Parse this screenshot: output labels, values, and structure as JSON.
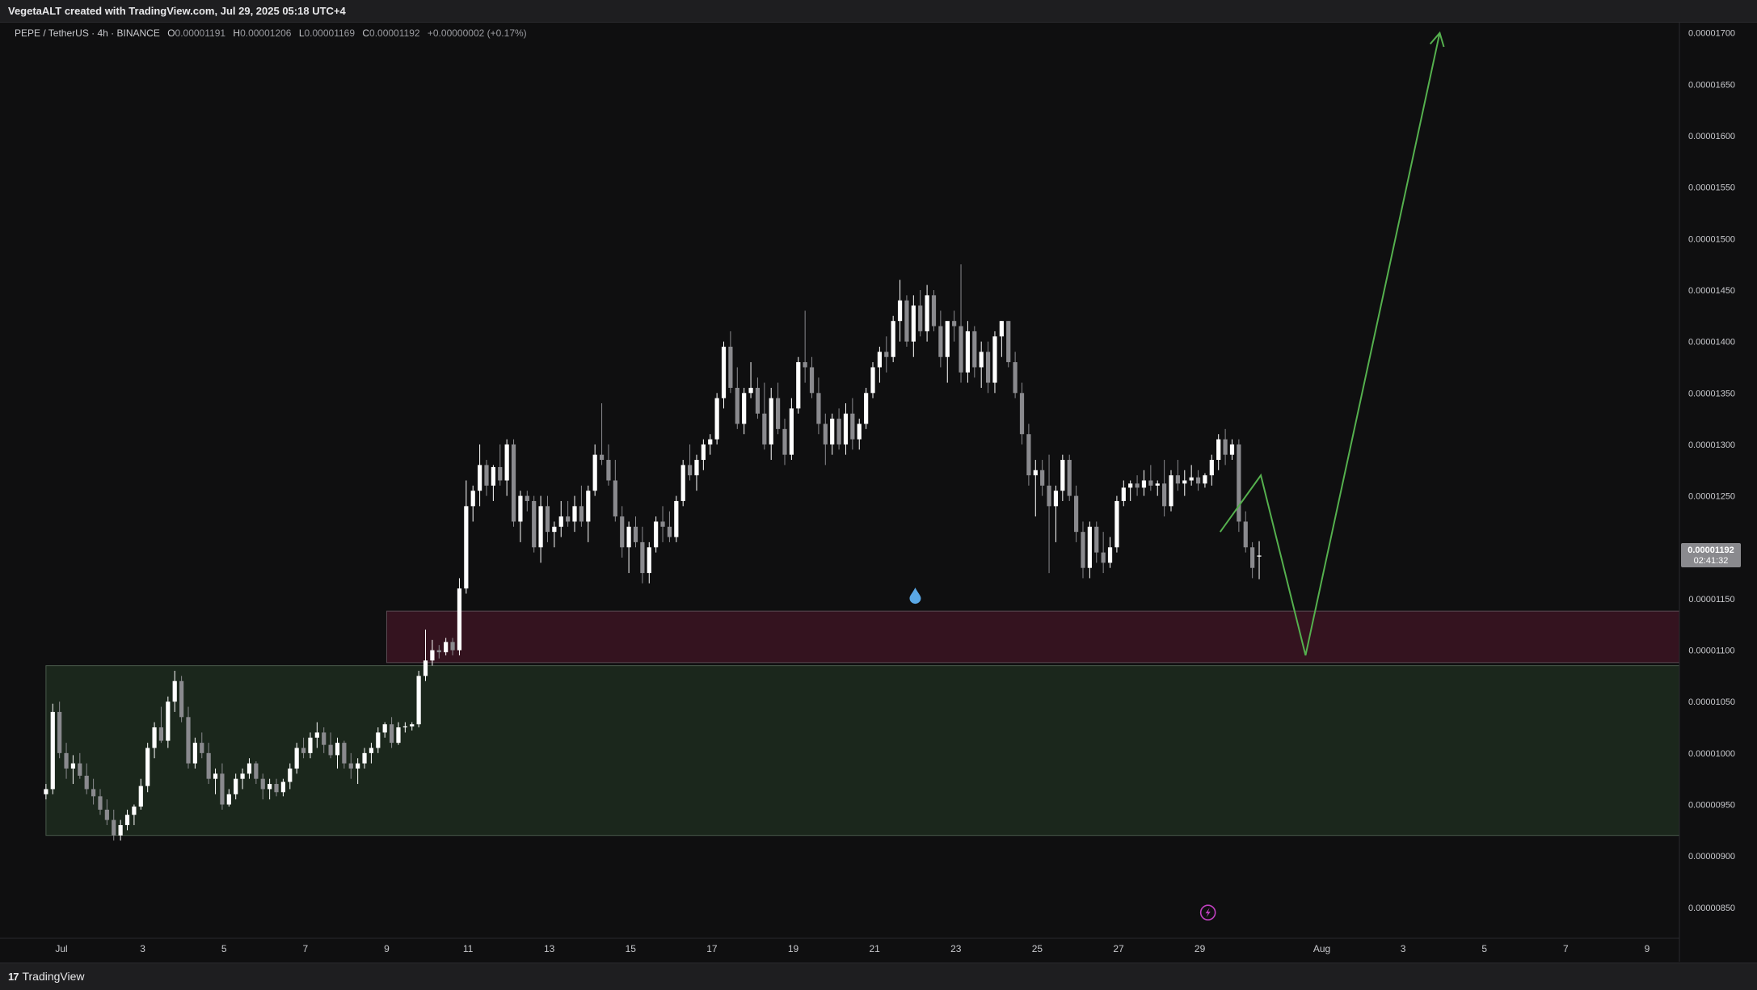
{
  "header": {
    "attribution": "VegetaALT created with TradingView.com, Jul 29, 2025 05:18 UTC+4"
  },
  "legend": {
    "symbol": "PEPE / TetherUS · 4h · BINANCE",
    "o_label": "O",
    "o_value": "0.00001191",
    "h_label": "H",
    "h_value": "0.00001206",
    "l_label": "L",
    "l_value": "0.00001169",
    "c_label": "C",
    "c_value": "0.00001192",
    "change": "+0.00000002 (+0.17%)"
  },
  "price_tag": {
    "price": "0.00001192",
    "countdown": "02:41:32"
  },
  "footer": {
    "brand": "TradingView"
  },
  "colors": {
    "background": "#0f0f10",
    "bull_candle": "#ffffff",
    "bear_candle": "#8a8a8e",
    "demand_zone": "#1b271c",
    "resistance_zone": "#34131f",
    "projection_line": "#55b04e",
    "marker_drop": "#5aa8e6",
    "marker_flash": "#c040c0"
  },
  "chart_data": {
    "type": "candlestick",
    "title": "",
    "ylim": [
      8.2e-06,
      1.71e-05
    ],
    "y_ticks": [
      "0.00000850",
      "0.00000900",
      "0.00000950",
      "0.00001000",
      "0.00001050",
      "0.00001100",
      "0.00001150",
      "0.00001200",
      "0.00001250",
      "0.00001300",
      "0.00001350",
      "0.00001400",
      "0.00001450",
      "0.00001500",
      "0.00001550",
      "0.00001600",
      "0.00001650",
      "0.00001700"
    ],
    "x_ticks": [
      "Jul",
      "3",
      "5",
      "7",
      "9",
      "11",
      "13",
      "15",
      "17",
      "19",
      "21",
      "23",
      "25",
      "27",
      "29",
      "Aug",
      "3",
      "5",
      "7",
      "9"
    ],
    "x_tick_days": [
      1,
      3,
      5,
      7,
      9,
      11,
      13,
      15,
      17,
      19,
      21,
      23,
      25,
      27,
      29,
      32,
      34,
      36,
      38,
      40
    ],
    "candle_start_day": 0.62,
    "candle_interval_days": 0.1667,
    "candles": [
      [
        9.6e-06,
        9.7e-06,
        9.55e-06,
        9.65e-06
      ],
      [
        9.65e-06,
        1.048e-05,
        9.6e-06,
        1.04e-05
      ],
      [
        1.04e-05,
        1.05e-05,
        9.95e-06,
        1e-05
      ],
      [
        1e-05,
        1.01e-05,
        9.75e-06,
        9.85e-06
      ],
      [
        9.85e-06,
        9.98e-06,
        9.7e-06,
        9.9e-06
      ],
      [
        9.9e-06,
        1e-05,
        9.75e-06,
        9.78e-06
      ],
      [
        9.78e-06,
        9.9e-06,
        9.6e-06,
        9.65e-06
      ],
      [
        9.65e-06,
        9.75e-06,
        9.5e-06,
        9.58e-06
      ],
      [
        9.58e-06,
        9.65e-06,
        9.4e-06,
        9.45e-06
      ],
      [
        9.45e-06,
        9.55e-06,
        9.3e-06,
        9.35e-06
      ],
      [
        9.35e-06,
        9.45e-06,
        9.15e-06,
        9.2e-06
      ],
      [
        9.2e-06,
        9.35e-06,
        9.15e-06,
        9.3e-06
      ],
      [
        9.3e-06,
        9.45e-06,
        9.25e-06,
        9.4e-06
      ],
      [
        9.4e-06,
        9.5e-06,
        9.3e-06,
        9.48e-06
      ],
      [
        9.48e-06,
        9.75e-06,
        9.45e-06,
        9.68e-06
      ],
      [
        9.68e-06,
        1.01e-05,
        9.62e-06,
        1.005e-05
      ],
      [
        1.005e-05,
        1.03e-05,
        9.95e-06,
        1.025e-05
      ],
      [
        1.025e-05,
        1.045e-05,
        1.01e-05,
        1.012e-05
      ],
      [
        1.012e-05,
        1.055e-05,
        1.005e-05,
        1.05e-05
      ],
      [
        1.05e-05,
        1.08e-05,
        1.04e-05,
        1.07e-05
      ],
      [
        1.07e-05,
        1.075e-05,
        1.03e-05,
        1.035e-05
      ],
      [
        1.035e-05,
        1.045e-05,
        9.85e-06,
        9.9e-06
      ],
      [
        9.9e-06,
        1.015e-05,
        9.85e-06,
        1.01e-05
      ],
      [
        1.01e-05,
        1.02e-05,
        9.95e-06,
        1e-05
      ],
      [
        1e-05,
        1.01e-05,
        9.7e-06,
        9.75e-06
      ],
      [
        9.75e-06,
        9.85e-06,
        9.6e-06,
        9.8e-06
      ],
      [
        9.8e-06,
        9.9e-06,
        9.45e-06,
        9.5e-06
      ],
      [
        9.5e-06,
        9.65e-06,
        9.48e-06,
        9.6e-06
      ],
      [
        9.6e-06,
        9.8e-06,
        9.55e-06,
        9.75e-06
      ],
      [
        9.75e-06,
        9.85e-06,
        9.65e-06,
        9.8e-06
      ],
      [
        9.8e-06,
        9.95e-06,
        9.75e-06,
        9.9e-06
      ],
      [
        9.9e-06,
        9.92e-06,
        9.7e-06,
        9.75e-06
      ],
      [
        9.75e-06,
        9.8e-06,
        9.55e-06,
        9.65e-06
      ],
      [
        9.65e-06,
        9.75e-06,
        9.55e-06,
        9.7e-06
      ],
      [
        9.7e-06,
        9.75e-06,
        9.58e-06,
        9.62e-06
      ],
      [
        9.62e-06,
        9.75e-06,
        9.58e-06,
        9.72e-06
      ],
      [
        9.72e-06,
        9.9e-06,
        9.65e-06,
        9.85e-06
      ],
      [
        9.85e-06,
        1.01e-05,
        9.8e-06,
        1.005e-05
      ],
      [
        1.005e-05,
        1.015e-05,
        9.95e-06,
        1e-05
      ],
      [
        1e-05,
        1.02e-05,
        9.95e-06,
        1.015e-05
      ],
      [
        1.015e-05,
        1.03e-05,
        1.005e-05,
        1.02e-05
      ],
      [
        1.02e-05,
        1.025e-05,
        1e-05,
        1.008e-05
      ],
      [
        1.008e-05,
        1.02e-05,
        9.95e-06,
        9.98e-06
      ],
      [
        9.98e-06,
        1.015e-05,
        9.85e-06,
        1.01e-05
      ],
      [
        1.01e-05,
        1.012e-05,
        9.85e-06,
        9.9e-06
      ],
      [
        9.9e-06,
        1e-05,
        9.75e-06,
        9.85e-06
      ],
      [
        9.85e-06,
        9.95e-06,
        9.7e-06,
        9.9e-06
      ],
      [
        9.9e-06,
        1.005e-05,
        9.85e-06,
        1e-05
      ],
      [
        1e-05,
        1.01e-05,
        9.9e-06,
        1.005e-05
      ],
      [
        1.005e-05,
        1.025e-05,
        1e-05,
        1.02e-05
      ],
      [
        1.02e-05,
        1.03e-05,
        1.015e-05,
        1.028e-05
      ],
      [
        1.028e-05,
        1.035e-05,
        1.005e-05,
        1.01e-05
      ],
      [
        1.01e-05,
        1.03e-05,
        1.008e-05,
        1.025e-05
      ],
      [
        1.025e-05,
        1.03e-05,
        1.02e-05,
        1.026e-05
      ],
      [
        1.026e-05,
        1.03e-05,
        1.022e-05,
        1.028e-05
      ],
      [
        1.028e-05,
        1.08e-05,
        1.025e-05,
        1.075e-05
      ],
      [
        1.075e-05,
        1.12e-05,
        1.07e-05,
        1.09e-05
      ],
      [
        1.09e-05,
        1.11e-05,
        1.085e-05,
        1.1e-05
      ],
      [
        1.1e-05,
        1.105e-05,
        1.092e-05,
        1.098e-05
      ],
      [
        1.098e-05,
        1.112e-05,
        1.095e-05,
        1.108e-05
      ],
      [
        1.108e-05,
        1.112e-05,
        1.095e-05,
        1.1e-05
      ],
      [
        1.1e-05,
        1.17e-05,
        1.095e-05,
        1.16e-05
      ],
      [
        1.16e-05,
        1.265e-05,
        1.155e-05,
        1.24e-05
      ],
      [
        1.24e-05,
        1.26e-05,
        1.225e-05,
        1.255e-05
      ],
      [
        1.255e-05,
        1.3e-05,
        1.24e-05,
        1.28e-05
      ],
      [
        1.28e-05,
        1.285e-05,
        1.25e-05,
        1.26e-05
      ],
      [
        1.26e-05,
        1.28e-05,
        1.245e-05,
        1.278e-05
      ],
      [
        1.278e-05,
        1.3e-05,
        1.26e-05,
        1.265e-05
      ],
      [
        1.265e-05,
        1.305e-05,
        1.25e-05,
        1.3e-05
      ],
      [
        1.3e-05,
        1.305e-05,
        1.22e-05,
        1.225e-05
      ],
      [
        1.225e-05,
        1.255e-05,
        1.205e-05,
        1.25e-05
      ],
      [
        1.25e-05,
        1.255e-05,
        1.235e-05,
        1.245e-05
      ],
      [
        1.245e-05,
        1.25e-05,
        1.195e-05,
        1.2e-05
      ],
      [
        1.2e-05,
        1.25e-05,
        1.185e-05,
        1.24e-05
      ],
      [
        1.24e-05,
        1.25e-05,
        1.205e-05,
        1.215e-05
      ],
      [
        1.215e-05,
        1.225e-05,
        1.2e-05,
        1.22e-05
      ],
      [
        1.22e-05,
        1.245e-05,
        1.21e-05,
        1.23e-05
      ],
      [
        1.23e-05,
        1.245e-05,
        1.22e-05,
        1.225e-05
      ],
      [
        1.225e-05,
        1.25e-05,
        1.215e-05,
        1.24e-05
      ],
      [
        1.24e-05,
        1.26e-05,
        1.22e-05,
        1.225e-05
      ],
      [
        1.225e-05,
        1.26e-05,
        1.205e-05,
        1.255e-05
      ],
      [
        1.255e-05,
        1.3e-05,
        1.25e-05,
        1.29e-05
      ],
      [
        1.29e-05,
        1.34e-05,
        1.28e-05,
        1.285e-05
      ],
      [
        1.285e-05,
        1.3e-05,
        1.26e-05,
        1.265e-05
      ],
      [
        1.265e-05,
        1.285e-05,
        1.225e-05,
        1.23e-05
      ],
      [
        1.23e-05,
        1.24e-05,
        1.19e-05,
        1.2e-05
      ],
      [
        1.2e-05,
        1.225e-05,
        1.175e-05,
        1.22e-05
      ],
      [
        1.22e-05,
        1.23e-05,
        1.2e-05,
        1.205e-05
      ],
      [
        1.205e-05,
        1.22e-05,
        1.165e-05,
        1.175e-05
      ],
      [
        1.175e-05,
        1.205e-05,
        1.165e-05,
        1.2e-05
      ],
      [
        1.2e-05,
        1.23e-05,
        1.195e-05,
        1.225e-05
      ],
      [
        1.225e-05,
        1.24e-05,
        1.205e-05,
        1.22e-05
      ],
      [
        1.22e-05,
        1.235e-05,
        1.205e-05,
        1.21e-05
      ],
      [
        1.21e-05,
        1.25e-05,
        1.205e-05,
        1.245e-05
      ],
      [
        1.245e-05,
        1.285e-05,
        1.24e-05,
        1.28e-05
      ],
      [
        1.28e-05,
        1.3e-05,
        1.265e-05,
        1.27e-05
      ],
      [
        1.27e-05,
        1.29e-05,
        1.255e-05,
        1.285e-05
      ],
      [
        1.285e-05,
        1.305e-05,
        1.275e-05,
        1.3e-05
      ],
      [
        1.3e-05,
        1.31e-05,
        1.29e-05,
        1.305e-05
      ],
      [
        1.305e-05,
        1.35e-05,
        1.3e-05,
        1.345e-05
      ],
      [
        1.345e-05,
        1.4e-05,
        1.335e-05,
        1.395e-05
      ],
      [
        1.395e-05,
        1.41e-05,
        1.35e-05,
        1.355e-05
      ],
      [
        1.355e-05,
        1.375e-05,
        1.315e-05,
        1.32e-05
      ],
      [
        1.32e-05,
        1.355e-05,
        1.31e-05,
        1.35e-05
      ],
      [
        1.35e-05,
        1.38e-05,
        1.345e-05,
        1.355e-05
      ],
      [
        1.355e-05,
        1.365e-05,
        1.325e-05,
        1.33e-05
      ],
      [
        1.33e-05,
        1.36e-05,
        1.295e-05,
        1.3e-05
      ],
      [
        1.3e-05,
        1.355e-05,
        1.285e-05,
        1.345e-05
      ],
      [
        1.345e-05,
        1.36e-05,
        1.31e-05,
        1.315e-05
      ],
      [
        1.315e-05,
        1.325e-05,
        1.28e-05,
        1.29e-05
      ],
      [
        1.29e-05,
        1.345e-05,
        1.285e-05,
        1.335e-05
      ],
      [
        1.335e-05,
        1.385e-05,
        1.33e-05,
        1.38e-05
      ],
      [
        1.38e-05,
        1.43e-05,
        1.36e-05,
        1.375e-05
      ],
      [
        1.375e-05,
        1.385e-05,
        1.345e-05,
        1.35e-05
      ],
      [
        1.35e-05,
        1.365e-05,
        1.31e-05,
        1.32e-05
      ],
      [
        1.32e-05,
        1.33e-05,
        1.28e-05,
        1.3e-05
      ],
      [
        1.3e-05,
        1.33e-05,
        1.29e-05,
        1.325e-05
      ],
      [
        1.325e-05,
        1.335e-05,
        1.295e-05,
        1.3e-05
      ],
      [
        1.3e-05,
        1.34e-05,
        1.29e-05,
        1.33e-05
      ],
      [
        1.33e-05,
        1.345e-05,
        1.295e-05,
        1.305e-05
      ],
      [
        1.305e-05,
        1.325e-05,
        1.295e-05,
        1.32e-05
      ],
      [
        1.32e-05,
        1.355e-05,
        1.315e-05,
        1.35e-05
      ],
      [
        1.35e-05,
        1.38e-05,
        1.345e-05,
        1.375e-05
      ],
      [
        1.375e-05,
        1.395e-05,
        1.36e-05,
        1.39e-05
      ],
      [
        1.39e-05,
        1.405e-05,
        1.37e-05,
        1.385e-05
      ],
      [
        1.385e-05,
        1.425e-05,
        1.38e-05,
        1.42e-05
      ],
      [
        1.42e-05,
        1.46e-05,
        1.4e-05,
        1.44e-05
      ],
      [
        1.44e-05,
        1.445e-05,
        1.395e-05,
        1.4e-05
      ],
      [
        1.4e-05,
        1.445e-05,
        1.385e-05,
        1.435e-05
      ],
      [
        1.435e-05,
        1.45e-05,
        1.405e-05,
        1.41e-05
      ],
      [
        1.41e-05,
        1.455e-05,
        1.4e-05,
        1.445e-05
      ],
      [
        1.445e-05,
        1.45e-05,
        1.41e-05,
        1.415e-05
      ],
      [
        1.415e-05,
        1.43e-05,
        1.375e-05,
        1.385e-05
      ],
      [
        1.385e-05,
        1.415e-05,
        1.36e-05,
        1.42e-05
      ],
      [
        1.42e-05,
        1.43e-05,
        1.4e-05,
        1.415e-05
      ],
      [
        1.415e-05,
        1.475e-05,
        1.36e-05,
        1.37e-05
      ],
      [
        1.37e-05,
        1.42e-05,
        1.36e-05,
        1.41e-05
      ],
      [
        1.41e-05,
        1.415e-05,
        1.365e-05,
        1.375e-05
      ],
      [
        1.375e-05,
        1.4e-05,
        1.355e-05,
        1.39e-05
      ],
      [
        1.39e-05,
        1.4e-05,
        1.35e-05,
        1.36e-05
      ],
      [
        1.36e-05,
        1.41e-05,
        1.35e-05,
        1.405e-05
      ],
      [
        1.405e-05,
        1.42e-05,
        1.385e-05,
        1.42e-05
      ],
      [
        1.42e-05,
        1.42e-05,
        1.375e-05,
        1.38e-05
      ],
      [
        1.38e-05,
        1.39e-05,
        1.345e-05,
        1.35e-05
      ],
      [
        1.35e-05,
        1.36e-05,
        1.3e-05,
        1.31e-05
      ],
      [
        1.31e-05,
        1.32e-05,
        1.26e-05,
        1.27e-05
      ],
      [
        1.27e-05,
        1.285e-05,
        1.23e-05,
        1.275e-05
      ],
      [
        1.275e-05,
        1.285e-05,
        1.25e-05,
        1.26e-05
      ],
      [
        1.26e-05,
        1.29e-05,
        1.175e-05,
        1.24e-05
      ],
      [
        1.24e-05,
        1.26e-05,
        1.205e-05,
        1.255e-05
      ],
      [
        1.255e-05,
        1.29e-05,
        1.245e-05,
        1.285e-05
      ],
      [
        1.285e-05,
        1.29e-05,
        1.245e-05,
        1.25e-05
      ],
      [
        1.25e-05,
        1.26e-05,
        1.205e-05,
        1.215e-05
      ],
      [
        1.215e-05,
        1.225e-05,
        1.17e-05,
        1.18e-05
      ],
      [
        1.18e-05,
        1.225e-05,
        1.17e-05,
        1.22e-05
      ],
      [
        1.22e-05,
        1.225e-05,
        1.185e-05,
        1.195e-05
      ],
      [
        1.195e-05,
        1.215e-05,
        1.175e-05,
        1.185e-05
      ],
      [
        1.185e-05,
        1.21e-05,
        1.18e-05,
        1.2e-05
      ],
      [
        1.2e-05,
        1.25e-05,
        1.195e-05,
        1.245e-05
      ],
      [
        1.245e-05,
        1.265e-05,
        1.24e-05,
        1.258e-05
      ],
      [
        1.258e-05,
        1.265e-05,
        1.245e-05,
        1.262e-05
      ],
      [
        1.262e-05,
        1.27e-05,
        1.25e-05,
        1.258e-05
      ],
      [
        1.258e-05,
        1.275e-05,
        1.25e-05,
        1.265e-05
      ],
      [
        1.265e-05,
        1.28e-05,
        1.255e-05,
        1.26e-05
      ],
      [
        1.26e-05,
        1.265e-05,
        1.25e-05,
        1.262e-05
      ],
      [
        1.262e-05,
        1.285e-05,
        1.23e-05,
        1.24e-05
      ],
      [
        1.24e-05,
        1.275e-05,
        1.235e-05,
        1.27e-05
      ],
      [
        1.27e-05,
        1.285e-05,
        1.255e-05,
        1.262e-05
      ],
      [
        1.262e-05,
        1.275e-05,
        1.25e-05,
        1.265e-05
      ],
      [
        1.265e-05,
        1.28e-05,
        1.26e-05,
        1.268e-05
      ],
      [
        1.268e-05,
        1.275e-05,
        1.255e-05,
        1.262e-05
      ],
      [
        1.262e-05,
        1.272e-05,
        1.258e-05,
        1.27e-05
      ],
      [
        1.27e-05,
        1.29e-05,
        1.26e-05,
        1.285e-05
      ],
      [
        1.285e-05,
        1.31e-05,
        1.275e-05,
        1.305e-05
      ],
      [
        1.305e-05,
        1.315e-05,
        1.28e-05,
        1.29e-05
      ],
      [
        1.29e-05,
        1.305e-05,
        1.285e-05,
        1.3e-05
      ],
      [
        1.3e-05,
        1.305e-05,
        1.215e-05,
        1.225e-05
      ],
      [
        1.225e-05,
        1.235e-05,
        1.195e-05,
        1.2e-05
      ],
      [
        1.2e-05,
        1.205e-05,
        1.17e-05,
        1.18e-05
      ],
      [
        1.191e-05,
        1.206e-05,
        1.169e-05,
        1.192e-05
      ]
    ],
    "zones": [
      {
        "from_day": 0.62,
        "to_day": 41.0,
        "low": 9.2e-06,
        "high": 1.085e-05
      },
      {
        "from_day": 9.0,
        "to_day": 41.0,
        "low": 1.088e-05,
        "high": 1.138e-05
      }
    ],
    "projection": [
      {
        "day": 29.5,
        "price": 1.215e-05
      },
      {
        "day": 30.5,
        "price": 1.27e-05
      },
      {
        "day": 31.6,
        "price": 1.095e-05
      },
      {
        "day": 34.9,
        "price": 1.7e-05
      }
    ],
    "markers": [
      {
        "type": "drop",
        "day": 22.0,
        "price": 1.153e-05
      },
      {
        "type": "flash",
        "day": 29.2,
        "price": 8.45e-06
      }
    ]
  }
}
